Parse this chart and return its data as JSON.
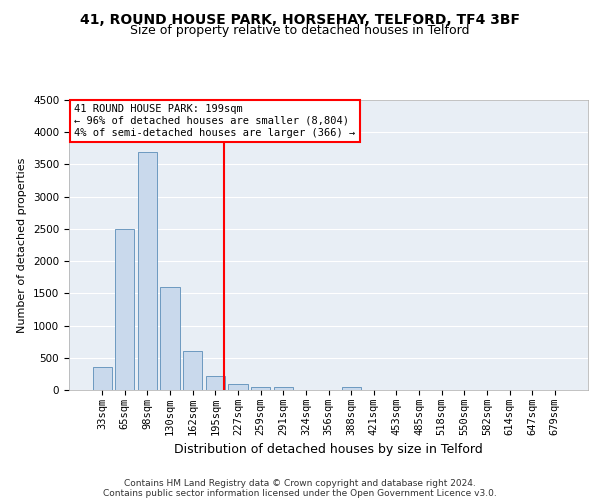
{
  "title1": "41, ROUND HOUSE PARK, HORSEHAY, TELFORD, TF4 3BF",
  "title2": "Size of property relative to detached houses in Telford",
  "xlabel": "Distribution of detached houses by size in Telford",
  "ylabel": "Number of detached properties",
  "categories": [
    "33sqm",
    "65sqm",
    "98sqm",
    "130sqm",
    "162sqm",
    "195sqm",
    "227sqm",
    "259sqm",
    "291sqm",
    "324sqm",
    "356sqm",
    "388sqm",
    "421sqm",
    "453sqm",
    "485sqm",
    "518sqm",
    "550sqm",
    "582sqm",
    "614sqm",
    "647sqm",
    "679sqm"
  ],
  "values": [
    350,
    2500,
    3700,
    1600,
    600,
    220,
    100,
    50,
    40,
    0,
    0,
    50,
    0,
    0,
    0,
    0,
    0,
    0,
    0,
    0,
    0
  ],
  "bar_color": "#c9d9ec",
  "bar_edge_color": "#5b8db8",
  "vline_color": "red",
  "annotation_text": "41 ROUND HOUSE PARK: 199sqm\n← 96% of detached houses are smaller (8,804)\n4% of semi-detached houses are larger (366) →",
  "annotation_box_color": "white",
  "annotation_box_edge_color": "red",
  "footnote1": "Contains HM Land Registry data © Crown copyright and database right 2024.",
  "footnote2": "Contains public sector information licensed under the Open Government Licence v3.0.",
  "ylim": [
    0,
    4500
  ],
  "yticks": [
    0,
    500,
    1000,
    1500,
    2000,
    2500,
    3000,
    3500,
    4000,
    4500
  ],
  "bg_color": "#e8eef5",
  "title1_fontsize": 10,
  "title2_fontsize": 9,
  "xlabel_fontsize": 9,
  "ylabel_fontsize": 8,
  "tick_fontsize": 7.5,
  "annot_fontsize": 7.5,
  "footnote_fontsize": 6.5
}
